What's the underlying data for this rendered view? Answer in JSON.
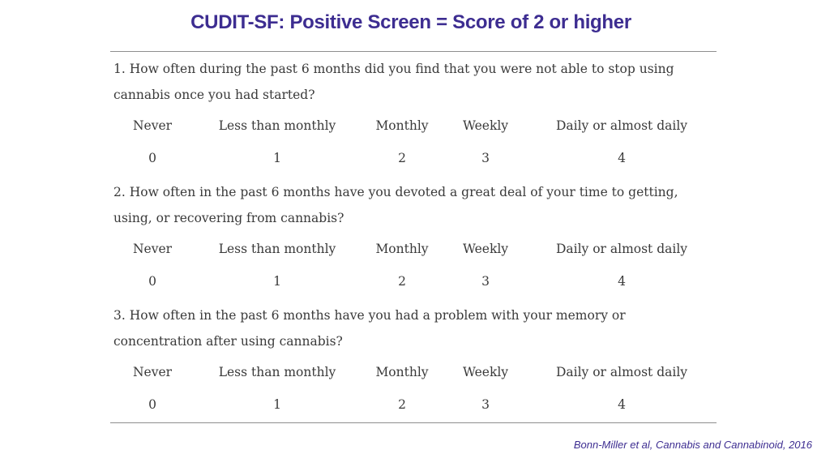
{
  "slide": {
    "title": "CUDIT-SF: Positive Screen = Score of 2 or higher",
    "citation": "Bonn-Miller et al, Cannabis and Cannabinoid, 2016"
  },
  "colors": {
    "title": "#3d2d91",
    "body_text": "#3a3a3a",
    "rule": "#8e8e8e"
  },
  "questions": [
    {
      "text": "1.  How often during the past 6 months did you find that you were not able to stop using cannabis once you had started?",
      "options": [
        "Never",
        "Less than monthly",
        "Monthly",
        "Weekly",
        "Daily or almost daily"
      ],
      "scores": [
        "0",
        "1",
        "2",
        "3",
        "4"
      ]
    },
    {
      "text": "2.  How often in the past 6 months have you devoted a great deal of your time to getting, using, or recovering from cannabis?",
      "options": [
        "Never",
        "Less than monthly",
        "Monthly",
        "Weekly",
        "Daily or almost daily"
      ],
      "scores": [
        "0",
        "1",
        "2",
        "3",
        "4"
      ]
    },
    {
      "text": "3.  How often in the past 6 months have you had a problem with your memory or concentration after using cannabis?",
      "options": [
        "Never",
        "Less than monthly",
        "Monthly",
        "Weekly",
        "Daily or almost daily"
      ],
      "scores": [
        "0",
        "1",
        "2",
        "3",
        "4"
      ]
    }
  ]
}
